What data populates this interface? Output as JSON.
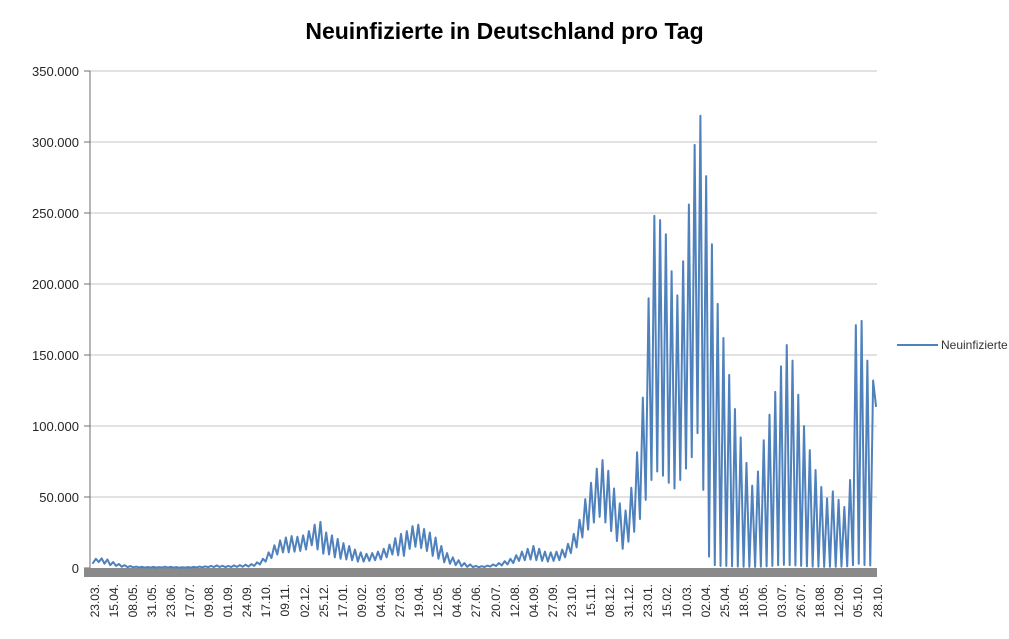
{
  "chart_data": {
    "type": "line",
    "title": "Neuinfizierte in Deutschland pro Tag",
    "xlabel": "",
    "ylabel": "",
    "ylim": [
      0,
      350000
    ],
    "grid": true,
    "legend_position": "right",
    "y_tick_values": [
      0,
      50000,
      100000,
      150000,
      200000,
      250000,
      300000,
      350000
    ],
    "y_tick_labels": [
      "0",
      "50.000",
      "100.000",
      "150.000",
      "200.000",
      "250.000",
      "300.000",
      "350.000"
    ],
    "x_tick_labels": [
      "23.03.",
      "15.04.",
      "08.05.",
      "31.05.",
      "23.06.",
      "17.07.",
      "09.08.",
      "01.09.",
      "24.09.",
      "17.10.",
      "09.11.",
      "02.12.",
      "25.12.",
      "17.01.",
      "09.02.",
      "04.03.",
      "27.03.",
      "19.04.",
      "12.05.",
      "04.06.",
      "27.06.",
      "20.07.",
      "12.08.",
      "04.09.",
      "27.09.",
      "23.10.",
      "15.11.",
      "08.12.",
      "31.12.",
      "23.01.",
      "15.02.",
      "10.03.",
      "02.04.",
      "25.04.",
      "18.05.",
      "10.06.",
      "03.07.",
      "26.07.",
      "18.08.",
      "12.09.",
      "05.10.",
      "28.10."
    ],
    "series": [
      {
        "name": "Neuinfizierte",
        "color": "#4F81BD",
        "sampling_note": "weekly min/max envelope pairs, 23.03.2020 - 28.10.2022",
        "values": [
          3500,
          6500,
          4200,
          6800,
          3000,
          6000,
          2000,
          4200,
          1500,
          2800,
          900,
          2000,
          600,
          1400,
          400,
          1000,
          350,
          800,
          300,
          700,
          300,
          800,
          250,
          600,
          300,
          900,
          300,
          800,
          250,
          600,
          200,
          500,
          250,
          600,
          300,
          800,
          400,
          1000,
          500,
          1200,
          600,
          1500,
          700,
          1800,
          700,
          1600,
          600,
          1500,
          700,
          1800,
          800,
          2000,
          900,
          2300,
          1000,
          2700,
          1500,
          4000,
          2500,
          6500,
          4500,
          11000,
          7000,
          16000,
          9500,
          19500,
          11000,
          21500,
          11000,
          22500,
          11500,
          22000,
          12000,
          23000,
          13000,
          26000,
          16000,
          30500,
          13000,
          32500,
          10000,
          25000,
          9500,
          23000,
          7500,
          20500,
          6500,
          17500,
          6000,
          15500,
          5500,
          13000,
          4500,
          11000,
          4500,
          10000,
          5000,
          10500,
          5500,
          11500,
          6000,
          13500,
          7500,
          16500,
          9500,
          21000,
          9000,
          24000,
          8500,
          26000,
          13500,
          29500,
          15000,
          30500,
          14000,
          27500,
          12000,
          25000,
          8500,
          21500,
          6500,
          15500,
          4000,
          10500,
          3000,
          7500,
          2000,
          5500,
          1200,
          3500,
          800,
          2500,
          600,
          1500,
          500,
          1300,
          700,
          1700,
          1000,
          2500,
          1400,
          3500,
          1800,
          4800,
          2500,
          6500,
          3500,
          9000,
          5000,
          11500,
          5500,
          13500,
          6000,
          15500,
          5500,
          13500,
          5000,
          11500,
          4500,
          11000,
          5000,
          11500,
          5500,
          13000,
          7500,
          17000,
          10500,
          24000,
          14500,
          34000,
          21500,
          48500,
          27000,
          60000,
          32000,
          70000,
          36000,
          76000,
          32000,
          68500,
          26000,
          56000,
          19000,
          45500,
          13500,
          40500,
          18500,
          56500,
          25500,
          81500,
          34500,
          120000,
          48000,
          190000,
          62000,
          248000,
          68000,
          245000,
          65000,
          235000,
          60000,
          209000,
          56000,
          192000,
          62000,
          216000,
          70000,
          256000,
          78000,
          298000,
          95000,
          318500,
          55000,
          276000,
          8000,
          228000,
          2000,
          186000,
          1500,
          162000,
          1500,
          136000,
          1200,
          112000,
          1000,
          92000,
          900,
          74000,
          800,
          58000,
          800,
          68000,
          1000,
          90000,
          1200,
          108000,
          1500,
          124000,
          2000,
          142000,
          2200,
          157000,
          2000,
          146000,
          1800,
          122000,
          1500,
          100000,
          1200,
          83000,
          1000,
          69000,
          900,
          57000,
          800,
          49000,
          900,
          54000,
          900,
          48000,
          1000,
          43000,
          1200,
          62000,
          2000,
          171000,
          3000,
          174000,
          2000,
          146000,
          1800,
          132000,
          114000
        ]
      }
    ],
    "colors": {
      "line": "#4F81BD",
      "gridline": "#C6C6C6",
      "axis": "#6E6E6E",
      "baseline_bar": "#8A8A8A",
      "tick_text": "#262626",
      "title_text": "#000000",
      "legend_text": "#333333"
    }
  }
}
